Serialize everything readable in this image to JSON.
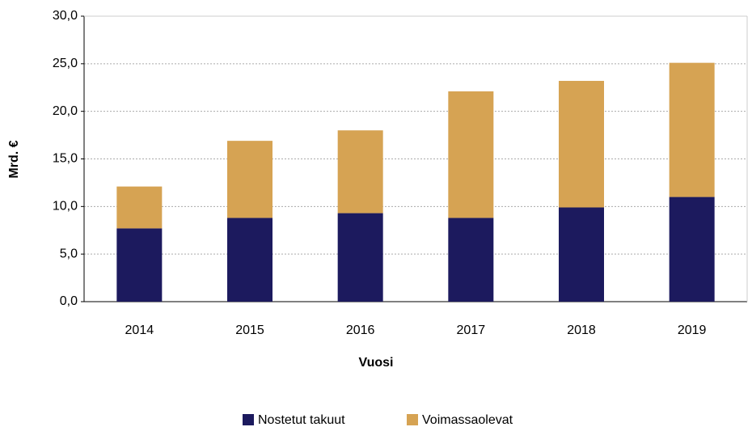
{
  "chart_data": {
    "type": "stacked_bar",
    "x_label": "Vuosi",
    "y_label": "Mrd. €",
    "categories": [
      "2014",
      "2015",
      "2016",
      "2017",
      "2018",
      "2019"
    ],
    "series": [
      {
        "name": "Nostetut takuut",
        "color": "#1c1a5e",
        "values": [
          7.7,
          8.8,
          9.3,
          8.8,
          9.9,
          11.0
        ]
      },
      {
        "name": "Voimassaolevat",
        "color": "#d6a353",
        "values": [
          4.4,
          8.1,
          8.7,
          13.3,
          13.3,
          14.1
        ]
      }
    ],
    "ylim": [
      0,
      30
    ],
    "yticks": [
      {
        "value": 0,
        "label": "0,0"
      },
      {
        "value": 5,
        "label": "5,0"
      },
      {
        "value": 10,
        "label": "10,0"
      },
      {
        "value": 15,
        "label": "15,0"
      },
      {
        "value": 20,
        "label": "20,0"
      },
      {
        "value": 25,
        "label": "25,0"
      },
      {
        "value": 30,
        "label": "30,0"
      }
    ],
    "grid": true,
    "legend": "bottom"
  }
}
